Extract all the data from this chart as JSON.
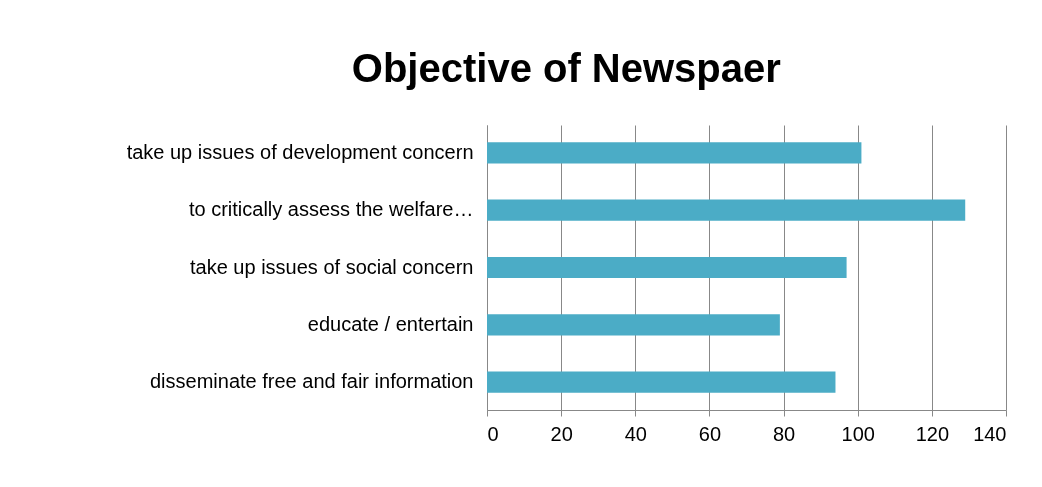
{
  "chart_data": {
    "type": "bar",
    "orientation": "horizontal",
    "title": "Objective of Newspaer",
    "categories": [
      "take up issues of development concern",
      "to critically assess the welfare…",
      "take up issues of social concern",
      "educate / entertain",
      "disseminate free and fair information"
    ],
    "values": [
      101,
      129,
      97,
      79,
      94
    ],
    "color": "#4bacc6",
    "xlim": [
      0,
      140
    ],
    "xticks": [
      0,
      20,
      40,
      60,
      80,
      100,
      120,
      140
    ],
    "grid": "x"
  }
}
